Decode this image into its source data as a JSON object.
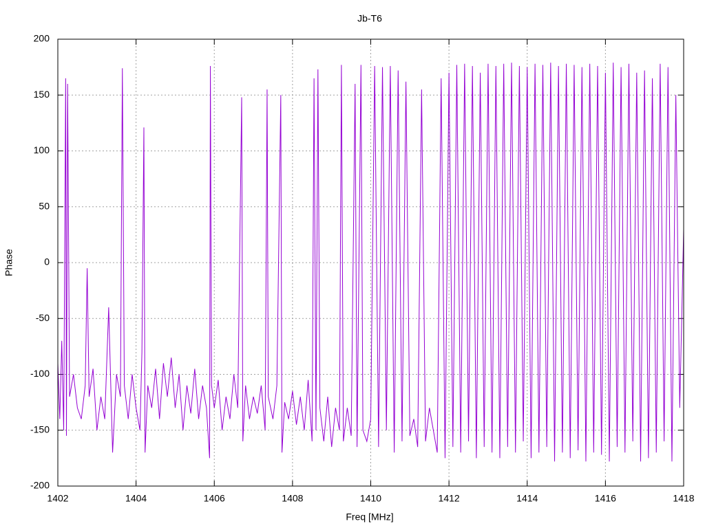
{
  "chart_data": {
    "type": "line",
    "title": "Jb-T6",
    "x_label": "Freq [MHz]",
    "y_label": "Phase",
    "color": "#9400d3",
    "grid": true,
    "xlim": [
      1402,
      1418
    ],
    "xticks": [
      1402,
      1404,
      1406,
      1408,
      1410,
      1412,
      1414,
      1416,
      1418
    ],
    "ylim": [
      -200,
      200
    ],
    "yticks": [
      -200,
      -150,
      -100,
      -50,
      0,
      50,
      100,
      150,
      200
    ],
    "x": [
      1402.0,
      1402.05,
      1402.1,
      1402.15,
      1402.2,
      1402.22,
      1402.25,
      1402.3,
      1402.4,
      1402.5,
      1402.6,
      1402.7,
      1402.75,
      1402.8,
      1402.9,
      1403.0,
      1403.1,
      1403.2,
      1403.3,
      1403.4,
      1403.5,
      1403.6,
      1403.65,
      1403.7,
      1403.8,
      1403.9,
      1404.0,
      1404.1,
      1404.15,
      1404.2,
      1404.23,
      1404.3,
      1404.4,
      1404.5,
      1404.6,
      1404.7,
      1404.8,
      1404.9,
      1405.0,
      1405.1,
      1405.2,
      1405.3,
      1405.4,
      1405.5,
      1405.6,
      1405.7,
      1405.8,
      1405.88,
      1405.9,
      1405.93,
      1406.0,
      1406.1,
      1406.2,
      1406.3,
      1406.4,
      1406.5,
      1406.6,
      1406.7,
      1406.73,
      1406.8,
      1406.9,
      1407.0,
      1407.1,
      1407.2,
      1407.3,
      1407.35,
      1407.38,
      1407.5,
      1407.6,
      1407.7,
      1407.73,
      1407.8,
      1407.9,
      1408.0,
      1408.1,
      1408.2,
      1408.3,
      1408.4,
      1408.5,
      1408.55,
      1408.6,
      1408.65,
      1408.7,
      1408.8,
      1408.9,
      1409.0,
      1409.1,
      1409.2,
      1409.25,
      1409.3,
      1409.4,
      1409.5,
      1409.6,
      1409.65,
      1409.75,
      1409.8,
      1409.9,
      1410.0,
      1410.1,
      1410.2,
      1410.3,
      1410.4,
      1410.5,
      1410.6,
      1410.7,
      1410.8,
      1410.9,
      1411.0,
      1411.1,
      1411.2,
      1411.3,
      1411.4,
      1411.5,
      1411.6,
      1411.7,
      1411.8,
      1411.9,
      1412.0,
      1412.1,
      1412.2,
      1412.3,
      1412.4,
      1412.5,
      1412.6,
      1412.7,
      1412.8,
      1412.9,
      1413.0,
      1413.1,
      1413.2,
      1413.3,
      1413.4,
      1413.5,
      1413.6,
      1413.7,
      1413.8,
      1413.9,
      1414.0,
      1414.1,
      1414.2,
      1414.3,
      1414.4,
      1414.5,
      1414.6,
      1414.7,
      1414.8,
      1414.9,
      1415.0,
      1415.1,
      1415.2,
      1415.3,
      1415.4,
      1415.5,
      1415.6,
      1415.7,
      1415.8,
      1415.9,
      1416.0,
      1416.1,
      1416.2,
      1416.3,
      1416.4,
      1416.5,
      1416.6,
      1416.7,
      1416.8,
      1416.9,
      1417.0,
      1417.1,
      1417.2,
      1417.3,
      1417.4,
      1417.5,
      1417.6,
      1417.7,
      1417.8,
      1417.9,
      1418.0
    ],
    "values": [
      -90,
      -140,
      -70,
      -150,
      165,
      -155,
      160,
      -120,
      -100,
      -130,
      -140,
      -110,
      -5,
      -120,
      -95,
      -150,
      -120,
      -140,
      -40,
      -170,
      -100,
      -120,
      174,
      -110,
      -140,
      -100,
      -130,
      -150,
      -80,
      121,
      -170,
      -110,
      -130,
      -95,
      -140,
      -90,
      -120,
      -85,
      -130,
      -100,
      -150,
      -110,
      -135,
      -95,
      -140,
      -110,
      -130,
      -175,
      176,
      -110,
      -130,
      -105,
      -150,
      -120,
      -140,
      -100,
      -130,
      148,
      -160,
      -110,
      -140,
      -120,
      -135,
      -110,
      -150,
      155,
      -120,
      -140,
      -110,
      150,
      -170,
      -125,
      -140,
      -115,
      -145,
      -120,
      -150,
      -105,
      -160,
      165,
      -150,
      173,
      -130,
      -160,
      -120,
      -165,
      -130,
      -150,
      177,
      -160,
      -130,
      -155,
      160,
      -165,
      177,
      -150,
      -160,
      -140,
      176,
      -165,
      175,
      -150,
      176,
      -170,
      172,
      -160,
      162,
      -155,
      -140,
      -165,
      155,
      -160,
      -130,
      -150,
      -170,
      165,
      -175,
      170,
      -165,
      177,
      -170,
      178,
      -160,
      176,
      -175,
      170,
      -165,
      178,
      -170,
      176,
      -175,
      178,
      -165,
      179,
      -170,
      176,
      -160,
      175,
      -175,
      178,
      -170,
      177,
      -165,
      179,
      -178,
      176,
      -170,
      178,
      -175,
      177,
      -168,
      175,
      -178,
      178,
      -170,
      176,
      -172,
      170,
      -178,
      179,
      -165,
      175,
      -170,
      178,
      -160,
      170,
      -178,
      172,
      -175,
      165,
      -170,
      178,
      -160,
      175,
      -178,
      150,
      -130,
      30
    ]
  }
}
